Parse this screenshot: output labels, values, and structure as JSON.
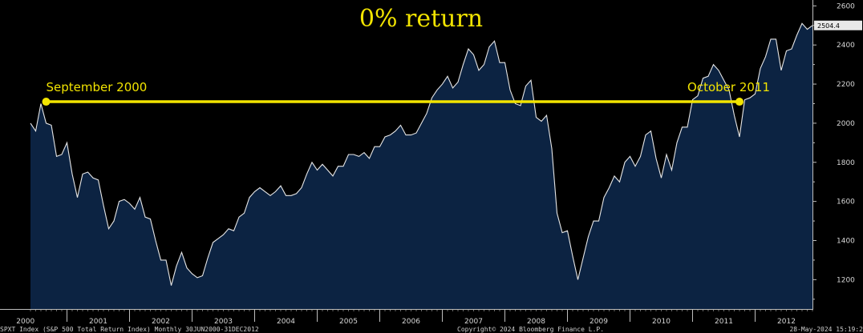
{
  "chart_data": {
    "type": "area",
    "title": "0% return",
    "ylim": [
      1050,
      2630
    ],
    "y_ticks": [
      1200,
      1400,
      1600,
      1800,
      2000,
      2200,
      2400,
      2600
    ],
    "x_tick_labels": [
      "2000",
      "2001",
      "2002",
      "2003",
      "2004",
      "2005",
      "2006",
      "2007",
      "2008",
      "2009",
      "2010",
      "2011",
      "2012"
    ],
    "last_value_label": "2504.4",
    "footer": {
      "left": "SPXT Index (S&P 500 Total Return Index)  Monthly 30JUN2000-31DEC2012",
      "center": "Copyright© 2024 Bloomberg Finance L.P.",
      "right": "28-May-2024 15:19:2"
    },
    "colors": {
      "background": "#000000",
      "area_fill": "#0c2342",
      "line": "#e6e6e6",
      "annotation": "#f2e400",
      "axis": "#bdbdbd"
    },
    "series": [
      {
        "values": [
          2000,
          1960,
          2100,
          2000,
          1990,
          1830,
          1840,
          1900,
          1740,
          1620,
          1740,
          1750,
          1720,
          1710,
          1580,
          1460,
          1500,
          1600,
          1610,
          1590,
          1560,
          1620,
          1520,
          1510,
          1400,
          1300,
          1300,
          1170,
          1270,
          1340,
          1260,
          1230,
          1210,
          1220,
          1310,
          1390,
          1410,
          1430,
          1460,
          1450,
          1520,
          1540,
          1620,
          1650,
          1670,
          1650,
          1630,
          1650,
          1680,
          1630,
          1630,
          1640,
          1670,
          1740,
          1800,
          1760,
          1790,
          1760,
          1730,
          1780,
          1780,
          1840,
          1840,
          1830,
          1850,
          1820,
          1880,
          1880,
          1930,
          1940,
          1960,
          1990,
          1940,
          1940,
          1950,
          2000,
          2050,
          2130,
          2170,
          2200,
          2240,
          2180,
          2210,
          2300,
          2380,
          2350,
          2270,
          2300,
          2390,
          2420,
          2310,
          2310,
          2170,
          2100,
          2090,
          2190,
          2220,
          2030,
          2010,
          2040,
          1870,
          1540,
          1440,
          1450,
          1320,
          1200,
          1310,
          1420,
          1500,
          1500,
          1620,
          1670,
          1730,
          1700,
          1800,
          1830,
          1780,
          1830,
          1940,
          1960,
          1820,
          1720,
          1840,
          1760,
          1900,
          1980,
          1980,
          2120,
          2140,
          2230,
          2240,
          2300,
          2270,
          2220,
          2170,
          2040,
          1930,
          2120,
          2130,
          2150,
          2280,
          2340,
          2430,
          2430,
          2270,
          2370,
          2380,
          2450,
          2510,
          2480,
          2500
        ]
      }
    ],
    "annotations": [
      {
        "label": "September 2000",
        "value": 2110
      },
      {
        "label": "October 2011",
        "value": 2110
      }
    ]
  }
}
